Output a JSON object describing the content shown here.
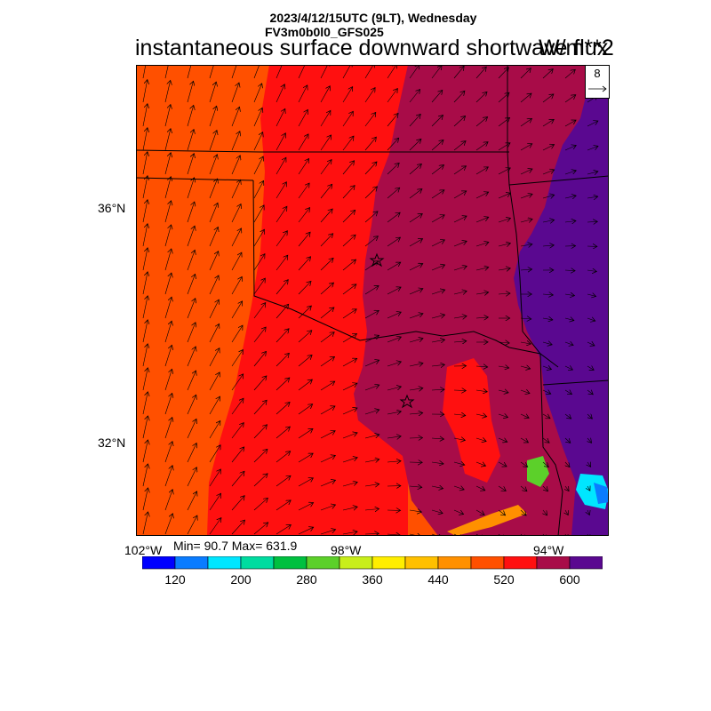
{
  "header": {
    "datetime": "2023/4/12/15UTC (9LT), Wednesday",
    "model": "FV3m0b0l0_GFS025",
    "title": "instantaneous surface downward shortwave flux",
    "units": "W/m**2"
  },
  "axes": {
    "lat_labels": [
      "36°N",
      "32°N"
    ],
    "lon_labels": [
      "102°W",
      "98°W",
      "94°W"
    ]
  },
  "stats": {
    "text": "Min= 90.7 Max= 631.9"
  },
  "reference_vector": {
    "value": "8"
  },
  "colorbar": {
    "colors": [
      "#0000ff",
      "#0a7cff",
      "#00e6ff",
      "#00dca0",
      "#00c040",
      "#5cd02a",
      "#c8ee1a",
      "#ffee00",
      "#ffc000",
      "#ff9000",
      "#ff5000",
      "#ff1010",
      "#a80c48",
      "#5a0890"
    ],
    "labels": [
      "120",
      "200",
      "280",
      "360",
      "440",
      "520",
      "600"
    ]
  },
  "map_colors": {
    "band_west": "#ff5000",
    "band_mid": "#ff1010",
    "band_east": "#a80c48",
    "band_far_east": "#5a0890",
    "cloud_green": "#5cd02a",
    "cloud_cyan": "#00e6ff",
    "cloud_blue": "#0a7cff"
  }
}
